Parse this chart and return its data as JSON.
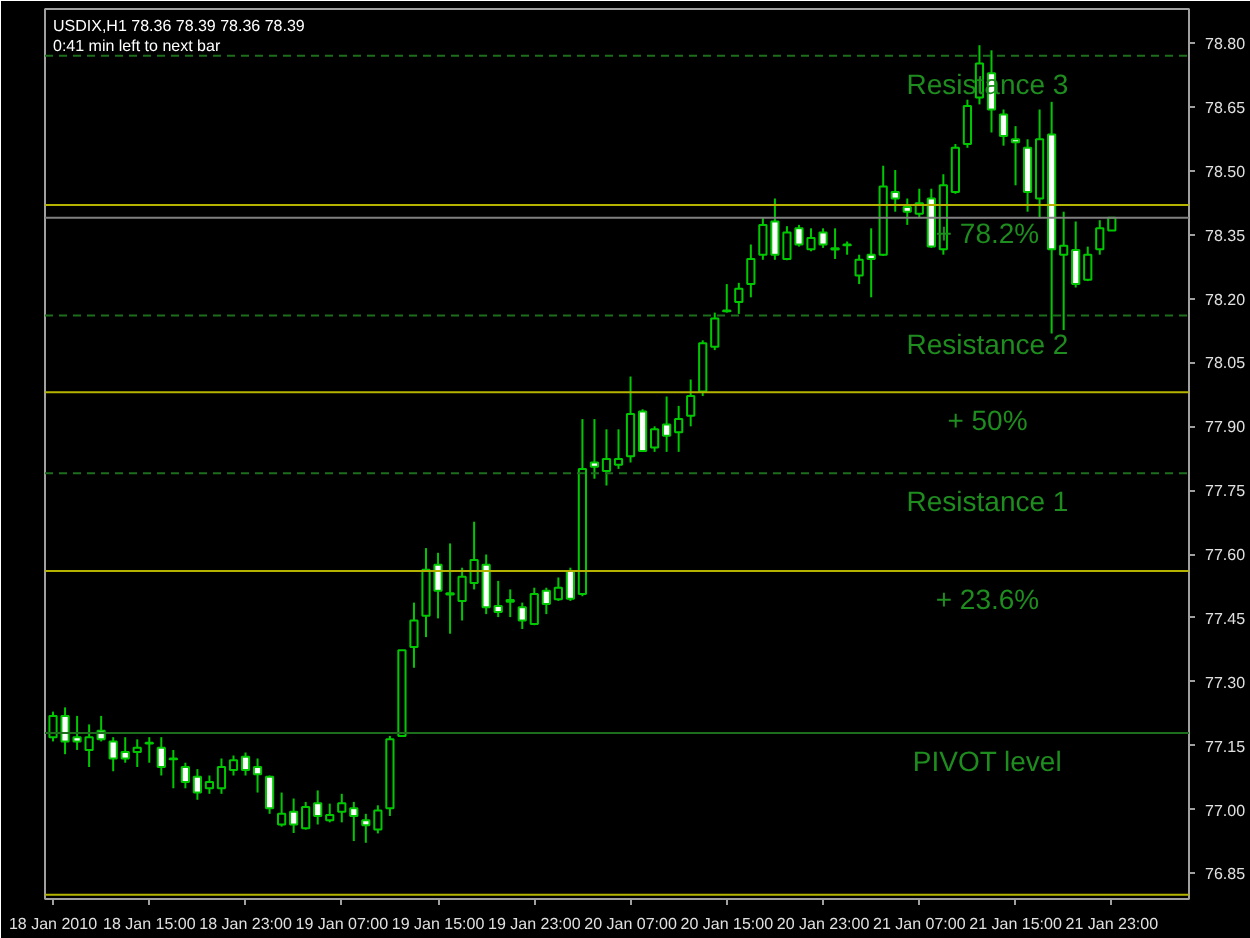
{
  "chart_data": {
    "type": "candlestick",
    "title": "USDIX,H1  78.36 78.39 78.36 78.39",
    "subtitle": "0:41 min left to next bar",
    "x": [
      "2010-01-18T07:00",
      "2010-01-18T08:00",
      "2010-01-18T09:00",
      "2010-01-18T10:00",
      "2010-01-18T11:00",
      "2010-01-18T12:00",
      "2010-01-18T13:00",
      "2010-01-18T14:00",
      "2010-01-18T15:00",
      "2010-01-18T16:00",
      "2010-01-18T17:00",
      "2010-01-18T18:00",
      "2010-01-18T19:00",
      "2010-01-18T20:00",
      "2010-01-18T21:00",
      "2010-01-18T22:00",
      "2010-01-18T23:00",
      "2010-01-19T00:00",
      "2010-01-19T01:00",
      "2010-01-19T02:00",
      "2010-01-19T03:00",
      "2010-01-19T04:00",
      "2010-01-19T05:00",
      "2010-01-19T06:00",
      "2010-01-19T07:00",
      "2010-01-19T08:00",
      "2010-01-19T09:00",
      "2010-01-19T10:00",
      "2010-01-19T11:00",
      "2010-01-19T12:00",
      "2010-01-19T13:00",
      "2010-01-19T14:00",
      "2010-01-19T15:00",
      "2010-01-19T16:00",
      "2010-01-19T17:00",
      "2010-01-19T18:00",
      "2010-01-19T19:00",
      "2010-01-19T20:00",
      "2010-01-19T21:00",
      "2010-01-19T22:00",
      "2010-01-19T23:00",
      "2010-01-20T00:00",
      "2010-01-20T01:00",
      "2010-01-20T02:00",
      "2010-01-20T03:00",
      "2010-01-20T04:00",
      "2010-01-20T05:00",
      "2010-01-20T06:00",
      "2010-01-20T07:00",
      "2010-01-20T08:00",
      "2010-01-20T09:00",
      "2010-01-20T10:00",
      "2010-01-20T11:00",
      "2010-01-20T12:00",
      "2010-01-20T13:00",
      "2010-01-20T14:00",
      "2010-01-20T15:00",
      "2010-01-20T16:00",
      "2010-01-20T17:00",
      "2010-01-20T18:00",
      "2010-01-20T19:00",
      "2010-01-20T20:00",
      "2010-01-20T21:00",
      "2010-01-20T22:00",
      "2010-01-20T23:00",
      "2010-01-21T00:00",
      "2010-01-21T01:00",
      "2010-01-21T02:00",
      "2010-01-21T03:00",
      "2010-01-21T04:00",
      "2010-01-21T05:00",
      "2010-01-21T06:00",
      "2010-01-21T07:00",
      "2010-01-21T08:00",
      "2010-01-21T09:00",
      "2010-01-21T10:00",
      "2010-01-21T11:00",
      "2010-01-21T12:00",
      "2010-01-21T13:00",
      "2010-01-21T14:00",
      "2010-01-21T15:00",
      "2010-01-21T16:00",
      "2010-01-21T17:00",
      "2010-01-21T18:00",
      "2010-01-21T19:00",
      "2010-01-21T20:00",
      "2010-01-21T21:00",
      "2010-01-21T22:00",
      "2010-01-21T23:00"
    ],
    "ohlc": [
      [
        77.17,
        77.23,
        77.16,
        77.22
      ],
      [
        77.22,
        77.24,
        77.13,
        77.16
      ],
      [
        77.17,
        77.22,
        77.14,
        77.16
      ],
      [
        77.14,
        77.2,
        77.1,
        77.17
      ],
      [
        77.185,
        77.22,
        77.16,
        77.165
      ],
      [
        77.16,
        77.17,
        77.09,
        77.12
      ],
      [
        77.135,
        77.17,
        77.11,
        77.12
      ],
      [
        77.135,
        77.165,
        77.1,
        77.145
      ],
      [
        77.155,
        77.17,
        77.11,
        77.157
      ],
      [
        77.145,
        77.17,
        77.08,
        77.1
      ],
      [
        77.12,
        77.14,
        77.05,
        77.118
      ],
      [
        77.1,
        77.11,
        77.05,
        77.065
      ],
      [
        77.077,
        77.095,
        77.023,
        77.04
      ],
      [
        77.05,
        77.08,
        77.037,
        77.065
      ],
      [
        77.05,
        77.12,
        77.037,
        77.1
      ],
      [
        77.093,
        77.127,
        77.08,
        77.116
      ],
      [
        77.124,
        77.134,
        77.08,
        77.093
      ],
      [
        77.1,
        77.12,
        77.04,
        77.083
      ],
      [
        77.077,
        77.08,
        76.99,
        77.003
      ],
      [
        76.965,
        77.04,
        76.96,
        76.99
      ],
      [
        76.995,
        77.026,
        76.945,
        76.965
      ],
      [
        76.956,
        77.018,
        76.953,
        77.006
      ],
      [
        77.015,
        77.045,
        76.965,
        76.985
      ],
      [
        76.975,
        77.014,
        76.97,
        76.987
      ],
      [
        76.995,
        77.037,
        76.97,
        77.015
      ],
      [
        77.003,
        77.018,
        76.926,
        76.985
      ],
      [
        76.975,
        76.99,
        76.922,
        76.963
      ],
      [
        76.953,
        77.01,
        76.944,
        76.998
      ],
      [
        77.003,
        77.173,
        76.985,
        77.165
      ],
      [
        77.173,
        77.374,
        77.173,
        77.374
      ],
      [
        77.382,
        77.486,
        77.333,
        77.444
      ],
      [
        77.455,
        77.614,
        77.405,
        77.563
      ],
      [
        77.575,
        77.603,
        77.449,
        77.514
      ],
      [
        77.508,
        77.625,
        77.413,
        77.505
      ],
      [
        77.49,
        77.568,
        77.444,
        77.547
      ],
      [
        77.532,
        77.676,
        77.517,
        77.586
      ],
      [
        77.575,
        77.599,
        77.459,
        77.475
      ],
      [
        77.478,
        77.537,
        77.452,
        77.464
      ],
      [
        77.492,
        77.517,
        77.452,
        77.488
      ],
      [
        77.475,
        77.486,
        77.424,
        77.444
      ],
      [
        77.436,
        77.521,
        77.433,
        77.506
      ],
      [
        77.514,
        77.521,
        77.459,
        77.483
      ],
      [
        77.494,
        77.545,
        77.49,
        77.521
      ],
      [
        77.56,
        77.568,
        77.49,
        77.495
      ],
      [
        77.506,
        77.917,
        77.501,
        77.8
      ],
      [
        77.815,
        77.917,
        77.777,
        77.805
      ],
      [
        77.795,
        77.893,
        77.761,
        77.823
      ],
      [
        77.81,
        77.893,
        77.8,
        77.823
      ],
      [
        77.83,
        78.017,
        77.815,
        77.929
      ],
      [
        77.935,
        77.94,
        77.84,
        77.842
      ],
      [
        77.85,
        77.9,
        77.84,
        77.893
      ],
      [
        77.904,
        77.97,
        77.84,
        77.878
      ],
      [
        77.886,
        77.948,
        77.84,
        77.917
      ],
      [
        77.925,
        78.01,
        77.9,
        77.971
      ],
      [
        77.982,
        78.102,
        77.971,
        78.095
      ],
      [
        78.087,
        78.167,
        78.079,
        78.153
      ],
      [
        78.172,
        78.234,
        78.167,
        78.17
      ],
      [
        78.192,
        78.237,
        78.164,
        78.223
      ],
      [
        78.234,
        78.327,
        78.203,
        78.293
      ],
      [
        78.303,
        78.389,
        78.291,
        78.373
      ],
      [
        78.381,
        78.435,
        78.291,
        78.303
      ],
      [
        78.293,
        78.37,
        78.29,
        78.355
      ],
      [
        78.365,
        78.373,
        78.322,
        78.327
      ],
      [
        78.316,
        78.365,
        78.311,
        78.342
      ],
      [
        78.355,
        78.365,
        78.319,
        78.327
      ],
      [
        78.318,
        78.365,
        78.293,
        78.315
      ],
      [
        78.327,
        78.334,
        78.303,
        78.325
      ],
      [
        78.254,
        78.303,
        78.234,
        78.291
      ],
      [
        78.303,
        78.365,
        78.203,
        78.293
      ],
      [
        78.303,
        78.512,
        78.3,
        78.463
      ],
      [
        78.45,
        78.502,
        78.404,
        78.435
      ],
      [
        78.415,
        78.435,
        78.373,
        78.404
      ],
      [
        78.399,
        78.458,
        78.389,
        78.424
      ],
      [
        78.435,
        78.458,
        78.319,
        78.322
      ],
      [
        78.316,
        78.492,
        78.303,
        78.466
      ],
      [
        78.45,
        78.563,
        78.446,
        78.554
      ],
      [
        78.563,
        78.667,
        78.554,
        78.652
      ],
      [
        78.672,
        78.795,
        78.656,
        78.752
      ],
      [
        78.729,
        78.783,
        78.59,
        78.644
      ],
      [
        78.632,
        78.644,
        78.559,
        78.582
      ],
      [
        78.574,
        78.605,
        78.466,
        78.567
      ],
      [
        78.554,
        78.574,
        78.404,
        78.45
      ],
      [
        78.435,
        78.644,
        78.389,
        78.574
      ],
      [
        78.585,
        78.662,
        78.118,
        78.316
      ],
      [
        78.303,
        78.404,
        78.126,
        78.324
      ],
      [
        78.314,
        78.381,
        78.226,
        78.234
      ],
      [
        78.244,
        78.322,
        78.241,
        78.303
      ],
      [
        78.316,
        78.384,
        78.303,
        78.365
      ],
      [
        78.36,
        78.39,
        78.36,
        78.39
      ]
    ],
    "xlim": [
      "2010-01-18T06:20",
      "2010-01-22T05:25"
    ],
    "xticks": [
      {
        "value": "2010-01-18T07:00",
        "label": "18 Jan 2010"
      },
      {
        "value": "2010-01-18T15:00",
        "label": "18 Jan 15:00"
      },
      {
        "value": "2010-01-18T23:00",
        "label": "18 Jan 23:00"
      },
      {
        "value": "2010-01-19T07:00",
        "label": "19 Jan 07:00"
      },
      {
        "value": "2010-01-19T15:00",
        "label": "19 Jan 15:00"
      },
      {
        "value": "2010-01-19T23:00",
        "label": "19 Jan 23:00"
      },
      {
        "value": "2010-01-20T07:00",
        "label": "20 Jan 07:00"
      },
      {
        "value": "2010-01-20T15:00",
        "label": "20 Jan 15:00"
      },
      {
        "value": "2010-01-20T23:00",
        "label": "20 Jan 23:00"
      },
      {
        "value": "2010-01-21T07:00",
        "label": "21 Jan 07:00"
      },
      {
        "value": "2010-01-21T15:00",
        "label": "21 Jan 15:00"
      },
      {
        "value": "2010-01-21T23:00",
        "label": "21 Jan 23:00"
      }
    ],
    "ylim": [
      76.79,
      78.88
    ],
    "yticks": [
      76.85,
      {
        "value": 77.0,
        "label": "77.00"
      },
      77.15,
      {
        "value": 77.3,
        "label": "77.30"
      },
      77.45,
      {
        "value": 77.6,
        "label": "77.60"
      },
      77.75,
      {
        "value": 77.9,
        "label": "77.90"
      },
      78.05,
      {
        "value": 78.2,
        "label": "78.20"
      },
      78.35,
      {
        "value": 78.5,
        "label": "78.50"
      },
      78.65,
      {
        "value": 78.8,
        "label": "78.80"
      }
    ],
    "annotations": [
      {
        "text": "Resistance 3",
        "x": "2010-01-21T12:40",
        "y": 78.77
      },
      {
        "text": "+ 78.2%",
        "x": "2010-01-21T12:40",
        "y": 78.42
      },
      {
        "text": "Resistance 2",
        "x": "2010-01-21T12:40",
        "y": 78.16
      },
      {
        "text": "+ 50%",
        "x": "2010-01-21T12:40",
        "y": 77.98
      },
      {
        "text": "Resistance 1",
        "x": "2010-01-21T12:40",
        "y": 77.79
      },
      {
        "text": "+ 23.6%",
        "x": "2010-01-21T12:40",
        "y": 77.56
      },
      {
        "text": "PIVOT level",
        "x": "2010-01-21T12:40",
        "y": 77.18
      }
    ],
    "ref_lines": [
      {
        "axis": "y",
        "value": 78.77,
        "label": null,
        "color": "#1c6e1c",
        "line_style": "dashed"
      },
      {
        "axis": "y",
        "value": 78.42,
        "label": null,
        "color": "#b4b400",
        "line_style": "solid"
      },
      {
        "axis": "y",
        "value": 78.39,
        "label": null,
        "color": "#808080",
        "line_style": "solid"
      },
      {
        "axis": "y",
        "value": 78.16,
        "label": null,
        "color": "#1c6e1c",
        "line_style": "dashed"
      },
      {
        "axis": "y",
        "value": 77.98,
        "label": null,
        "color": "#b4b400",
        "line_style": "solid"
      },
      {
        "axis": "y",
        "value": 77.79,
        "label": null,
        "color": "#1c6e1c",
        "line_style": "dashed"
      },
      {
        "axis": "y",
        "value": 77.56,
        "label": null,
        "color": "#b4b400",
        "line_style": "solid"
      },
      {
        "axis": "y",
        "value": 77.18,
        "label": null,
        "color": "#1c6e1c",
        "line_style": "solid"
      },
      {
        "axis": "y",
        "value": 76.8,
        "label": null,
        "color": "#b4b400",
        "line_style": "solid"
      }
    ],
    "grid": false
  }
}
